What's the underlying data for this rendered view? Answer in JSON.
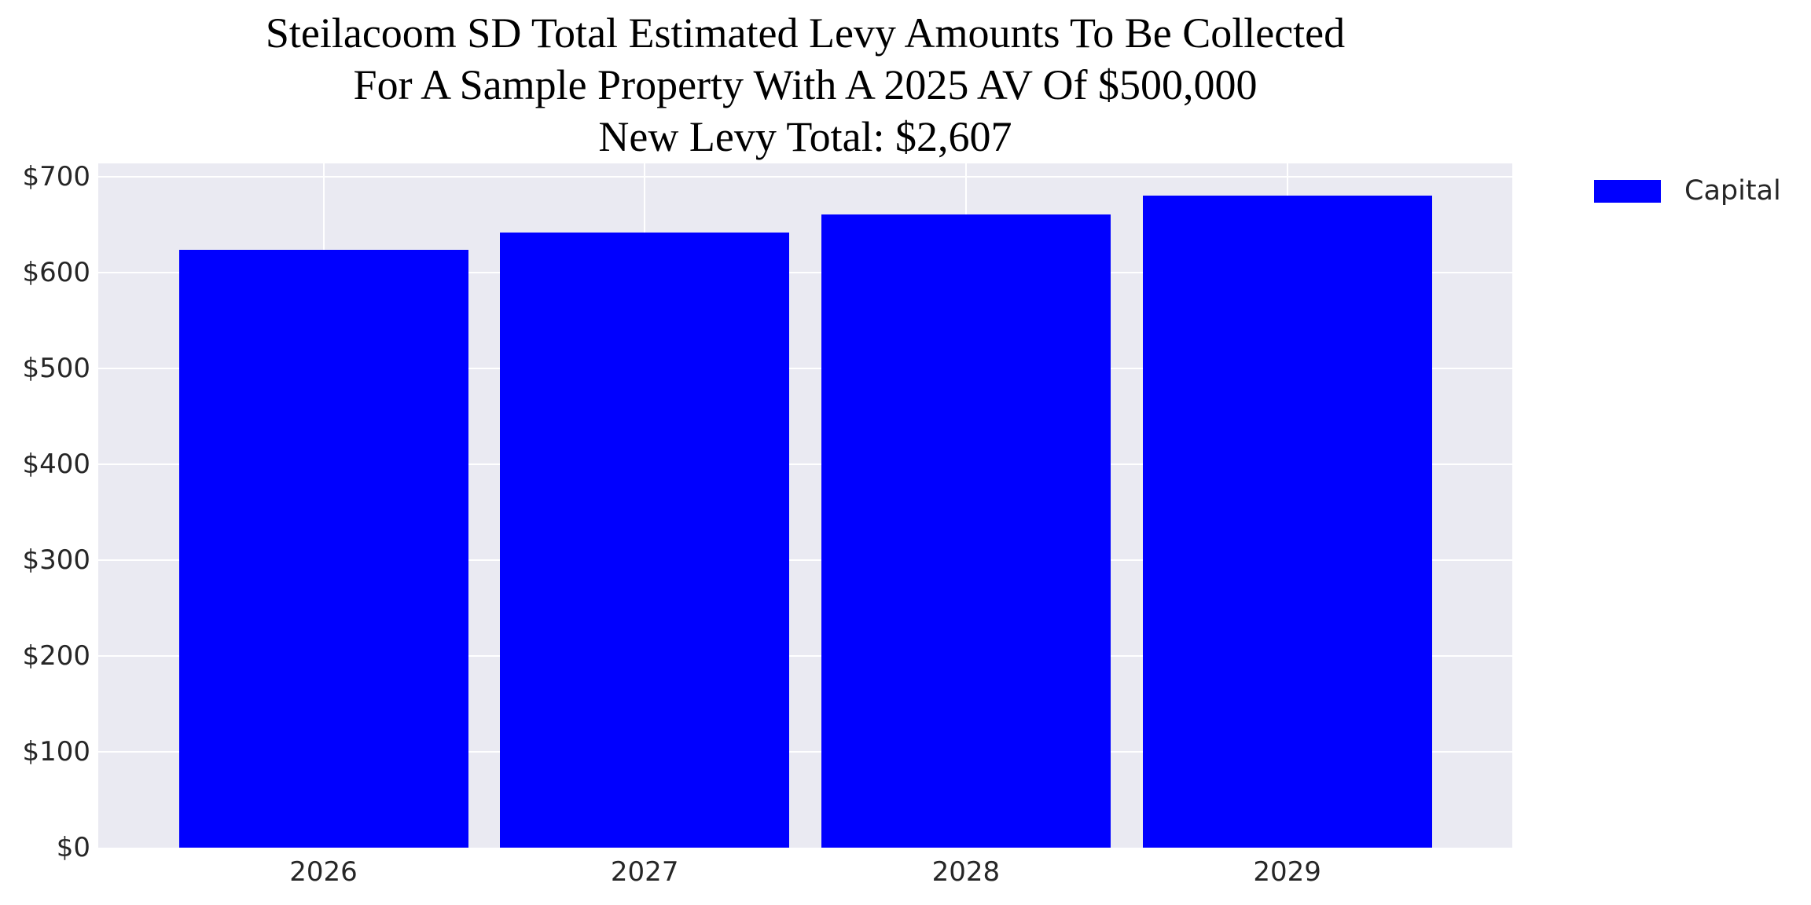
{
  "title": {
    "line1": "Steilacoom SD Total Estimated Levy Amounts To Be Collected",
    "line2": "For A Sample Property With A 2025 AV Of $500,000",
    "line3": "New Levy Total: $2,607"
  },
  "legend": {
    "label": "Capital"
  },
  "colors": {
    "bar": "#0000ff",
    "plot_background": "#eaeaf2",
    "gridline": "#ffffff",
    "tick_text": "#262626",
    "title_text": "#000000",
    "figure_background": "#ffffff"
  },
  "chart_data": {
    "type": "bar",
    "title": "Steilacoom SD Total Estimated Levy Amounts To Be Collected\nFor A Sample Property With A 2025 AV Of $500,000\nNew Levy Total: $2,607",
    "categories": [
      "2026",
      "2027",
      "2028",
      "2029"
    ],
    "series": [
      {
        "name": "Capital",
        "values": [
          624,
          642,
          661,
          680
        ],
        "color": "#0000ff"
      }
    ],
    "xlabel": "",
    "ylabel": "",
    "ylim": [
      0,
      714
    ],
    "yticks": [
      {
        "value": 0,
        "label": "$0"
      },
      {
        "value": 100,
        "label": "$100"
      },
      {
        "value": 200,
        "label": "$200"
      },
      {
        "value": 300,
        "label": "$300"
      },
      {
        "value": 400,
        "label": "$400"
      },
      {
        "value": 500,
        "label": "$500"
      },
      {
        "value": 600,
        "label": "$600"
      },
      {
        "value": 700,
        "label": "$700"
      }
    ],
    "grid": true,
    "grid_style": "seaborn-darkgrid (white gridlines on light lavender panel)",
    "legend_position": "upper right, outside plot area",
    "legend_frame": false
  }
}
